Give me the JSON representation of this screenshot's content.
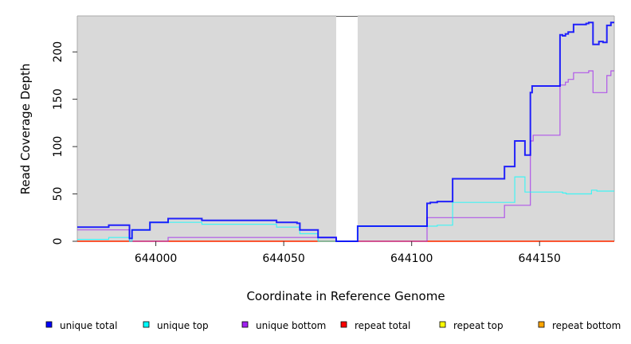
{
  "chart_data": {
    "type": "line",
    "step": true,
    "title": "",
    "xlabel": "Coordinate in Reference Genome",
    "ylabel": "Read Coverage Depth",
    "xlim": [
      643969.3,
      644179.2
    ],
    "ylim": [
      0,
      238
    ],
    "xticks": [
      644000,
      644050,
      644100,
      644150
    ],
    "yticks": [
      0,
      50,
      100,
      150,
      200
    ],
    "gap_regions": [
      [
        644070.5,
        644078.9
      ]
    ],
    "legend_position": "bottom",
    "series": [
      {
        "name": "unique total",
        "color": "#0000ff",
        "points": [
          [
            643969.3,
            15
          ],
          [
            643981.6,
            17
          ],
          [
            643989.7,
            3
          ],
          [
            643990.7,
            12
          ],
          [
            643997.7,
            20
          ],
          [
            644004.8,
            24
          ],
          [
            644018,
            22
          ],
          [
            644047.2,
            20
          ],
          [
            644055.2,
            19
          ],
          [
            644056.3,
            12
          ],
          [
            644063.4,
            4
          ],
          [
            644070.5,
            0
          ],
          [
            644078.9,
            16
          ],
          [
            644106,
            40
          ],
          [
            644107.3,
            41
          ],
          [
            644110,
            42
          ],
          [
            644116,
            66
          ],
          [
            644136.3,
            79
          ],
          [
            644140.3,
            106
          ],
          [
            644144.3,
            91
          ],
          [
            644146.4,
            157
          ],
          [
            644147.1,
            164
          ],
          [
            644158,
            218
          ],
          [
            644159,
            217
          ],
          [
            644160.1,
            219
          ],
          [
            644161.2,
            221
          ],
          [
            644163.3,
            229
          ],
          [
            644168.2,
            230
          ],
          [
            644169.2,
            231
          ],
          [
            644170.9,
            208
          ],
          [
            644173.2,
            211
          ],
          [
            644174.8,
            210
          ],
          [
            644176.3,
            228
          ],
          [
            644177.9,
            231
          ]
        ]
      },
      {
        "name": "unique top",
        "color": "#00ffff",
        "points": [
          [
            643969.3,
            2
          ],
          [
            643981.6,
            4
          ],
          [
            643989.7,
            0
          ],
          [
            643990.7,
            12
          ],
          [
            643997.7,
            20
          ],
          [
            644018,
            18
          ],
          [
            644047.2,
            15
          ],
          [
            644056.3,
            8
          ],
          [
            644063.4,
            0
          ],
          [
            644078.9,
            16
          ],
          [
            644106,
            16
          ],
          [
            644110,
            17
          ],
          [
            644116,
            41
          ],
          [
            644140.3,
            68
          ],
          [
            644144.3,
            52
          ],
          [
            644159,
            51
          ],
          [
            644160.4,
            50
          ],
          [
            644170.3,
            54
          ],
          [
            644172.4,
            53
          ]
        ]
      },
      {
        "name": "unique bottom",
        "color": "#a020f0",
        "points": [
          [
            643969.3,
            12
          ],
          [
            643989.7,
            0
          ],
          [
            644004.8,
            4
          ],
          [
            644070.5,
            0
          ],
          [
            644106,
            25
          ],
          [
            644136.3,
            38
          ],
          [
            644146.4,
            106
          ],
          [
            644147.5,
            112
          ],
          [
            644158,
            165
          ],
          [
            644160.1,
            168
          ],
          [
            644161.2,
            171
          ],
          [
            644163.3,
            178
          ],
          [
            644169.2,
            180
          ],
          [
            644170.9,
            157
          ],
          [
            644176.3,
            175
          ],
          [
            644177.9,
            180
          ]
        ]
      },
      {
        "name": "repeat total",
        "color": "#ff0000",
        "points": [
          [
            643969.3,
            0
          ],
          [
            644179.2,
            0
          ]
        ]
      },
      {
        "name": "repeat top",
        "color": "#ffff00",
        "points": [
          [
            643969.3,
            0
          ],
          [
            644179.2,
            0
          ]
        ]
      },
      {
        "name": "repeat bottom",
        "color": "#ffa500",
        "points": [
          [
            643969.3,
            0
          ],
          [
            644179.2,
            0
          ]
        ]
      }
    ]
  }
}
